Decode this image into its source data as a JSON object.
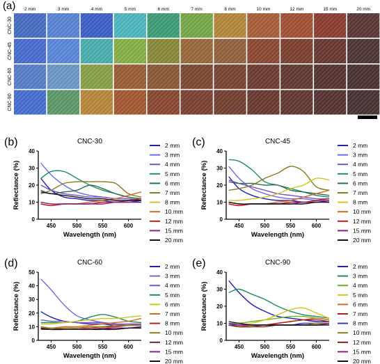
{
  "panel_a": {
    "label": "(a)",
    "columns": [
      "2 mm",
      "3 mm",
      "4 mm",
      "5 mm",
      "6 mm",
      "7 mm",
      "8 mm",
      "10 mm",
      "12 mm",
      "15 mm",
      "20 mm"
    ],
    "rows": [
      "CNC-30",
      "CNC-45",
      "CNC-60",
      "CNC-90"
    ],
    "tile_colors": [
      [
        "#4a6fc2",
        "#5b86d6",
        "#3f62c9",
        "#4fb8c0",
        "#3f9e78",
        "#78a84a",
        "#b6893e",
        "#a8603a",
        "#a45238",
        "#8e3f33",
        "#5b3a36"
      ],
      [
        "#4b6ed0",
        "#5a89db",
        "#4bb0b0",
        "#87b049",
        "#8a8a3c",
        "#9a6a3c",
        "#966340",
        "#8e4a35",
        "#7e4232",
        "#6a3a34",
        "#4f3835"
      ],
      [
        "#5a7fc8",
        "#6d99c8",
        "#8aa14a",
        "#9a6038",
        "#8c5a3a",
        "#7c4a34",
        "#7a4634",
        "#6e3e33",
        "#633a33",
        "#583634",
        "#4b3434"
      ],
      [
        "#4a6fd2",
        "#5e9a6a",
        "#b8893c",
        "#a65a34",
        "#8a4a34",
        "#7c4434",
        "#744234",
        "#6a3c33",
        "#623a33",
        "#583634",
        "#4a3434"
      ]
    ]
  },
  "chart_data": [
    {
      "type": "line",
      "panel": "(b)",
      "title": "CNC-30",
      "xlabel": "Wavelength (nm)",
      "ylabel": "Reflectance (%)",
      "xlim": [
        425,
        625
      ],
      "ylim": [
        0,
        40
      ],
      "xticks": [
        450,
        500,
        550,
        600
      ],
      "yticks": [
        0,
        10,
        20,
        30,
        40
      ],
      "x": [
        430,
        450,
        475,
        500,
        525,
        550,
        575,
        600,
        625
      ],
      "series": [
        {
          "name": "2 mm",
          "color": "#1f1fb4",
          "values": [
            24,
            17,
            13,
            12,
            11,
            11,
            10,
            10,
            10
          ]
        },
        {
          "name": "3 mm",
          "color": "#6a6ae6",
          "values": [
            33,
            26,
            20,
            16,
            14,
            13,
            12,
            12,
            11
          ]
        },
        {
          "name": "4 mm",
          "color": "#7b4fd0",
          "values": [
            20,
            17,
            15,
            14,
            13,
            13,
            12,
            12,
            11
          ]
        },
        {
          "name": "5 mm",
          "color": "#1e8c60",
          "values": [
            24,
            28,
            28,
            24,
            20,
            17,
            15,
            13,
            12
          ]
        },
        {
          "name": "6 mm",
          "color": "#2a6e52",
          "values": [
            17,
            15,
            16,
            17,
            20,
            18,
            15,
            13,
            12
          ]
        },
        {
          "name": "7 mm",
          "color": "#8c7a1e",
          "values": [
            15,
            17,
            21,
            22,
            22,
            22,
            21,
            15,
            13
          ]
        },
        {
          "name": "8 mm",
          "color": "#d4c41e",
          "values": [
            10,
            9,
            9,
            9,
            9,
            10,
            10,
            11,
            12
          ]
        },
        {
          "name": "10 mm",
          "color": "#d46a1e",
          "values": [
            9,
            8,
            9,
            9,
            10,
            11,
            12,
            14,
            16
          ]
        },
        {
          "name": "12 mm",
          "color": "#b41e1e",
          "values": [
            9,
            8,
            9,
            9,
            9,
            10,
            10,
            11,
            12
          ]
        },
        {
          "name": "15 mm",
          "color": "#8c1e8c",
          "values": [
            10,
            9,
            9,
            9,
            9,
            9,
            10,
            10,
            11
          ]
        },
        {
          "name": "20 mm",
          "color": "#111111",
          "values": [
            16,
            15,
            14,
            13,
            12,
            12,
            11,
            11,
            11
          ]
        }
      ]
    },
    {
      "type": "line",
      "panel": "(c)",
      "title": "CNC-45",
      "xlabel": "Wavelength (nm)",
      "ylabel": "Reflectance (%)",
      "xlim": [
        425,
        625
      ],
      "ylim": [
        0,
        40
      ],
      "xticks": [
        450,
        500,
        550,
        600
      ],
      "yticks": [
        0,
        10,
        20,
        30,
        40
      ],
      "x": [
        430,
        450,
        475,
        500,
        525,
        550,
        575,
        600,
        625
      ],
      "series": [
        {
          "name": "2 mm",
          "color": "#1f1fb4",
          "values": [
            25,
            18,
            14,
            12,
            11,
            11,
            10,
            10,
            10
          ]
        },
        {
          "name": "3 mm",
          "color": "#6a6ae6",
          "values": [
            31,
            24,
            18,
            15,
            13,
            12,
            12,
            11,
            11
          ]
        },
        {
          "name": "4 mm",
          "color": "#7b4fd0",
          "values": [
            23,
            21,
            19,
            17,
            15,
            14,
            13,
            12,
            12
          ]
        },
        {
          "name": "5 mm",
          "color": "#1e8c60",
          "values": [
            35,
            34,
            29,
            22,
            20,
            18,
            16,
            14,
            13
          ]
        },
        {
          "name": "6 mm",
          "color": "#2a6e52",
          "values": [
            22,
            21,
            21,
            20,
            20,
            17,
            16,
            15,
            14
          ]
        },
        {
          "name": "7 mm",
          "color": "#8c7a1e",
          "values": [
            17,
            18,
            20,
            24,
            27,
            31,
            28,
            19,
            17
          ]
        },
        {
          "name": "8 mm",
          "color": "#d4c41e",
          "values": [
            11,
            11,
            12,
            13,
            15,
            18,
            20,
            24,
            23
          ]
        },
        {
          "name": "10 mm",
          "color": "#d46a1e",
          "values": [
            9,
            8,
            9,
            9,
            10,
            11,
            13,
            15,
            17
          ]
        },
        {
          "name": "12 mm",
          "color": "#b41e1e",
          "values": [
            9,
            8,
            9,
            9,
            9,
            10,
            10,
            11,
            12
          ]
        },
        {
          "name": "15 mm",
          "color": "#8c1e8c",
          "values": [
            10,
            9,
            9,
            9,
            9,
            9,
            10,
            10,
            11
          ]
        },
        {
          "name": "20 mm",
          "color": "#111111",
          "values": [
            10,
            9,
            9,
            9,
            9,
            9,
            9,
            10,
            10
          ]
        }
      ]
    },
    {
      "type": "line",
      "panel": "(d)",
      "title": "CNC-60",
      "xlabel": "Wavelength (nm)",
      "ylabel": "Reflectance (%)",
      "xlim": [
        425,
        625
      ],
      "ylim": [
        0,
        50
      ],
      "xticks": [
        450,
        500,
        550,
        600
      ],
      "yticks": [
        0,
        10,
        20,
        30,
        40,
        50
      ],
      "x": [
        430,
        450,
        475,
        500,
        525,
        550,
        575,
        600,
        625
      ],
      "series": [
        {
          "name": "2 mm",
          "color": "#1f1fb4",
          "values": [
            21,
            17,
            14,
            13,
            12,
            12,
            11,
            11,
            11
          ]
        },
        {
          "name": "3 mm",
          "color": "#6a6ae6",
          "values": [
            45,
            37,
            26,
            18,
            15,
            13,
            12,
            11,
            11
          ]
        },
        {
          "name": "4 mm",
          "color": "#7b4fd0",
          "values": [
            15,
            14,
            14,
            13,
            13,
            13,
            12,
            12,
            12
          ]
        },
        {
          "name": "5 mm",
          "color": "#1e8c60",
          "values": [
            13,
            13,
            13,
            14,
            17,
            19,
            17,
            14,
            13
          ]
        },
        {
          "name": "6 mm",
          "color": "#d4c41e",
          "values": [
            12,
            12,
            13,
            14,
            15,
            16,
            16,
            17,
            18
          ]
        },
        {
          "name": "7 mm",
          "color": "#d46a1e",
          "values": [
            10,
            9,
            10,
            10,
            11,
            12,
            13,
            14,
            16
          ]
        },
        {
          "name": "8 mm",
          "color": "#b41e1e",
          "values": [
            9,
            8,
            9,
            9,
            9,
            10,
            10,
            11,
            12
          ]
        },
        {
          "name": "10 mm",
          "color": "#8c7a1e",
          "values": [
            10,
            9,
            9,
            9,
            10,
            10,
            11,
            11,
            12
          ]
        },
        {
          "name": "12 mm",
          "color": "#7a1e1e",
          "values": [
            8,
            8,
            8,
            8,
            8,
            9,
            9,
            9,
            10
          ]
        },
        {
          "name": "15 mm",
          "color": "#8c1e8c",
          "values": [
            9,
            8,
            8,
            8,
            8,
            8,
            9,
            9,
            9
          ]
        },
        {
          "name": "20 mm",
          "color": "#111111",
          "values": [
            9,
            8,
            8,
            8,
            8,
            8,
            8,
            9,
            9
          ]
        }
      ]
    },
    {
      "type": "line",
      "panel": "(e)",
      "title": "CNC-90",
      "xlabel": "Wavelength (nm)",
      "ylabel": "Reflectance (%)",
      "xlim": [
        425,
        625
      ],
      "ylim": [
        0,
        40
      ],
      "xticks": [
        450,
        500,
        550,
        600
      ],
      "yticks": [
        0,
        10,
        20,
        30,
        40
      ],
      "x": [
        430,
        450,
        475,
        500,
        525,
        550,
        575,
        600,
        625
      ],
      "series": [
        {
          "name": "2 mm",
          "color": "#1f1fb4",
          "values": [
            35,
            28,
            21,
            17,
            14,
            13,
            12,
            11,
            11
          ]
        },
        {
          "name": "3 mm",
          "color": "#1e8c60",
          "values": [
            28,
            30,
            27,
            24,
            20,
            17,
            15,
            14,
            13
          ]
        },
        {
          "name": "4 mm",
          "color": "#6ab41e",
          "values": [
            10,
            10,
            11,
            12,
            13,
            14,
            14,
            13,
            12
          ]
        },
        {
          "name": "5 mm",
          "color": "#d4c41e",
          "values": [
            9,
            9,
            10,
            12,
            15,
            18,
            19,
            16,
            13
          ]
        },
        {
          "name": "6 mm",
          "color": "#d46a1e",
          "values": [
            9,
            8,
            9,
            9,
            10,
            11,
            12,
            13,
            12
          ]
        },
        {
          "name": "7 mm",
          "color": "#b41e1e",
          "values": [
            10,
            9,
            9,
            9,
            10,
            11,
            12,
            12,
            11
          ]
        },
        {
          "name": "8 mm",
          "color": "#3a3ab4",
          "values": [
            10,
            9,
            9,
            9,
            9,
            9,
            10,
            10,
            10
          ]
        },
        {
          "name": "10 mm",
          "color": "#8c7a1e",
          "values": [
            9,
            8,
            8,
            9,
            9,
            9,
            9,
            10,
            10
          ]
        },
        {
          "name": "12 mm",
          "color": "#7a1e1e",
          "values": [
            9,
            8,
            8,
            8,
            9,
            9,
            9,
            9,
            10
          ]
        },
        {
          "name": "15 mm",
          "color": "#8c1e8c",
          "values": [
            9,
            9,
            9,
            9,
            9,
            9,
            9,
            9,
            10
          ]
        },
        {
          "name": "20 mm",
          "color": "#111111",
          "values": [
            11,
            10,
            9,
            9,
            9,
            9,
            9,
            9,
            9
          ]
        }
      ]
    }
  ]
}
